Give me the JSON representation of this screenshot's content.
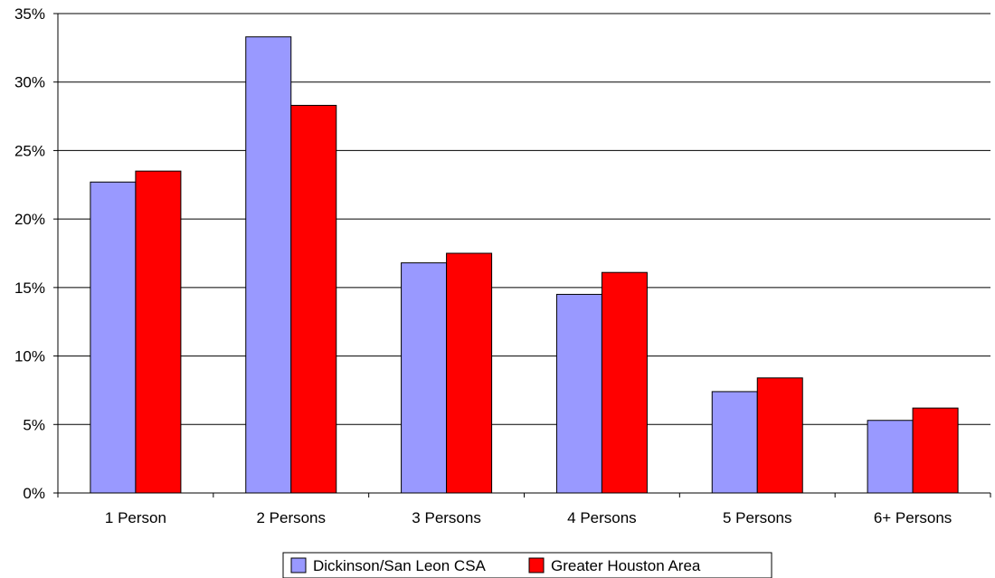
{
  "chart_data": {
    "type": "bar",
    "categories": [
      "1 Person",
      "2 Persons",
      "3 Persons",
      "4 Persons",
      "5 Persons",
      "6+ Persons"
    ],
    "series": [
      {
        "name": "Dickinson/San Leon CSA",
        "values": [
          22.7,
          33.3,
          16.8,
          14.5,
          7.4,
          5.3
        ],
        "color": "#9999ff"
      },
      {
        "name": "Greater Houston Area",
        "values": [
          23.5,
          28.3,
          17.5,
          16.1,
          8.4,
          6.2
        ],
        "color": "#ff0000"
      }
    ],
    "ylim": [
      0,
      35
    ],
    "yticks": [
      "0%",
      "5%",
      "10%",
      "15%",
      "20%",
      "25%",
      "30%",
      "35%"
    ],
    "ytick_values": [
      0,
      5,
      10,
      15,
      20,
      25,
      30,
      35
    ],
    "grid": true,
    "legend_position": "bottom-center"
  }
}
